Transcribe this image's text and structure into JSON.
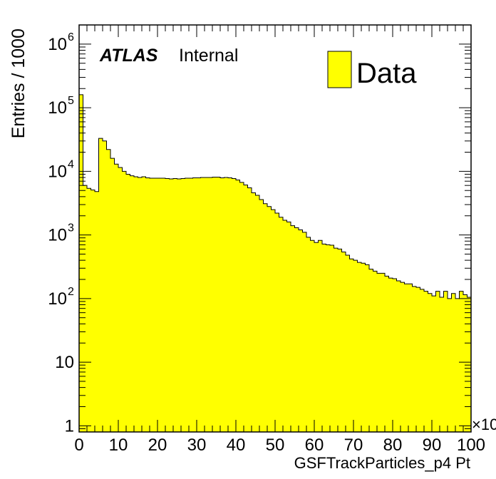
{
  "chart_data": {
    "type": "bar",
    "histogram": true,
    "scale_y": "log",
    "ylim": [
      0.8,
      2000000
    ],
    "xlim": [
      0,
      100
    ],
    "bin_width": 1,
    "x_unit_multiplier": "×10",
    "xlabel": "GSFTrackParticles_p4 Pt",
    "ylabel": "Entries / 1000",
    "experiment_label": "ATLAS",
    "status_label": "Internal",
    "legend": {
      "placement": "top-right",
      "entries": [
        {
          "label": "Data",
          "fill": "#ffff00"
        }
      ]
    },
    "x_ticks": [
      0,
      10,
      20,
      30,
      40,
      50,
      60,
      70,
      80,
      90,
      100
    ],
    "y_ticks": [
      {
        "value": 1,
        "base": "1",
        "exp": ""
      },
      {
        "value": 10,
        "base": "10",
        "exp": ""
      },
      {
        "value": 100,
        "base": "10",
        "exp": "2"
      },
      {
        "value": 1000,
        "base": "10",
        "exp": "3"
      },
      {
        "value": 10000,
        "base": "10",
        "exp": "4"
      },
      {
        "value": 100000,
        "base": "10",
        "exp": "5"
      },
      {
        "value": 1000000,
        "base": "10",
        "exp": "6"
      }
    ],
    "series": [
      {
        "name": "Data",
        "fill": "#ffff00",
        "values": [
          160000,
          6000,
          5400,
          5100,
          4800,
          33000,
          30000,
          22000,
          16000,
          13000,
          11500,
          10000,
          9000,
          8500,
          8200,
          8000,
          8200,
          7900,
          7800,
          7800,
          7800,
          7800,
          7700,
          7600,
          7700,
          7600,
          7700,
          7800,
          7800,
          7900,
          7900,
          8000,
          8000,
          8000,
          8100,
          8100,
          7900,
          8000,
          7900,
          7700,
          7300,
          6700,
          6100,
          5500,
          4600,
          4200,
          3600,
          3100,
          2800,
          2500,
          2200,
          1900,
          1700,
          1600,
          1400,
          1300,
          1200,
          1100,
          920,
          820,
          760,
          820,
          720,
          700,
          690,
          620,
          600,
          540,
          480,
          420,
          400,
          370,
          360,
          340,
          290,
          270,
          250,
          250,
          225,
          210,
          205,
          190,
          180,
          170,
          170,
          155,
          150,
          140,
          130,
          120,
          110,
          130,
          105,
          130,
          100,
          120,
          100,
          130,
          115,
          105
        ]
      }
    ]
  }
}
